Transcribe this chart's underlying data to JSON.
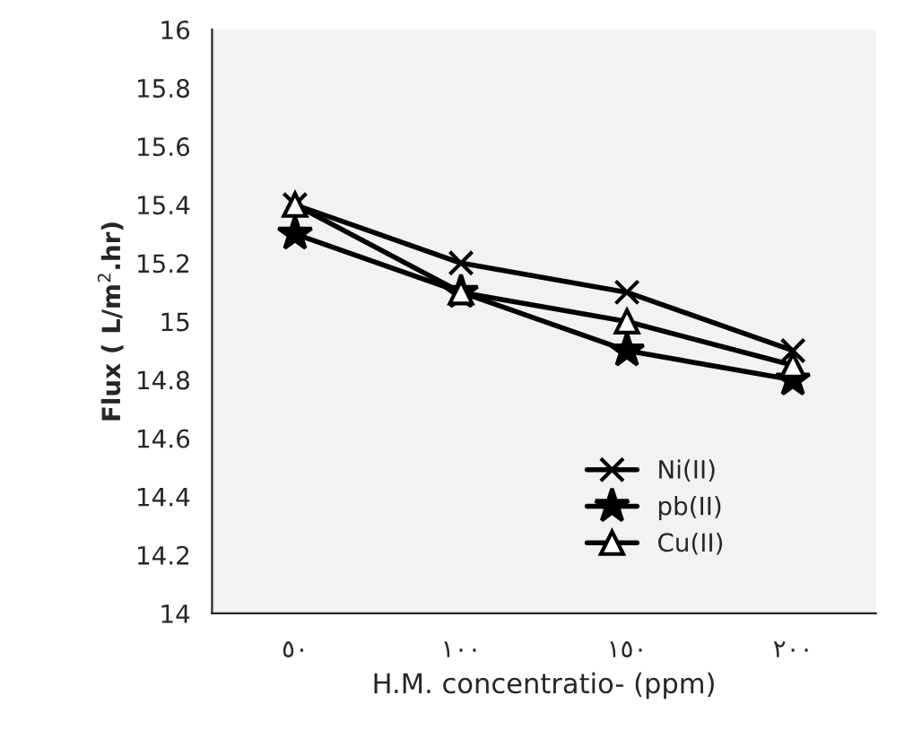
{
  "chart_data": {
    "type": "line",
    "xlabel": "H.M. concentratio- (ppm)",
    "ylabel": "Flux ( L/m$^{2}$.hr)",
    "categories": [
      "٥٠",
      "١٠٠",
      "١٥٠",
      "٢٠٠"
    ],
    "series": [
      {
        "name": "Ni(II)",
        "color": "#000000",
        "marker": "cross",
        "values": [
          15.4,
          15.2,
          15.1,
          14.9
        ]
      },
      {
        "name": "pb(II)",
        "color": "#000000",
        "marker": "star",
        "values": [
          15.3,
          15.1,
          14.9,
          14.8
        ]
      },
      {
        "name": "Cu(II)",
        "color": "#000000",
        "marker": "triangle",
        "values": [
          15.4,
          15.1,
          15.0,
          14.85
        ]
      }
    ],
    "ylim": [
      14,
      16
    ],
    "yticks": [
      14,
      14.2,
      14.4,
      14.6,
      14.8,
      15,
      15.2,
      15.4,
      15.6,
      15.8,
      16
    ],
    "grid": false,
    "legend": "bottom right",
    "line_style": "solid"
  }
}
